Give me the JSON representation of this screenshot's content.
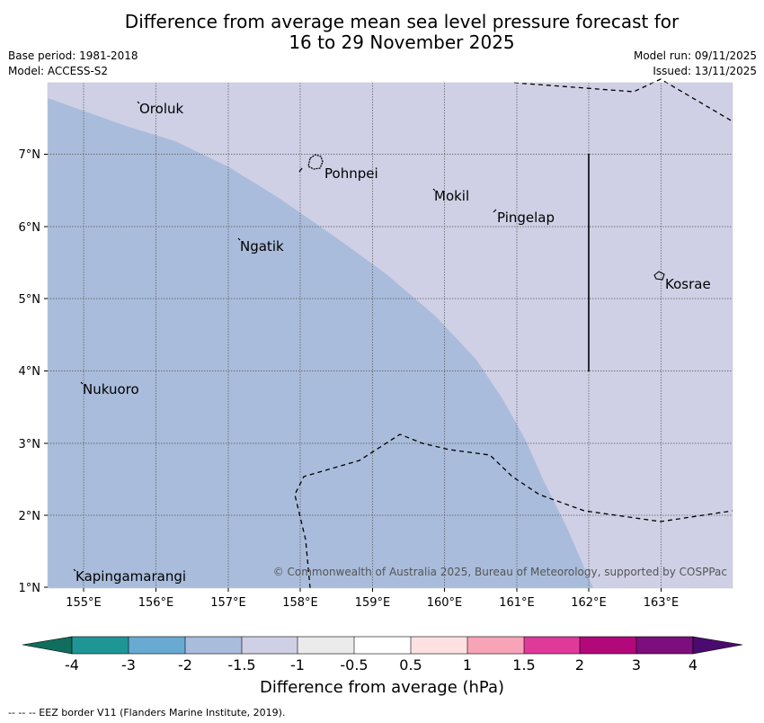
{
  "title_line1": "Difference from average mean sea level pressure forecast for",
  "title_line2": "16 to 29 November 2025",
  "base_period": "Base period: 1981-2018",
  "model": "Model: ACCESS-S2",
  "model_run": "Model run: 09/11/2025",
  "issued": "Issued: 13/11/2025",
  "map": {
    "places": [
      {
        "name": "Oroluk",
        "lon": 155.8,
        "lat": 7.6
      },
      {
        "name": "Pohnpei",
        "lon": 158.2,
        "lat": 6.9
      },
      {
        "name": "Mokil",
        "lon": 159.8,
        "lat": 6.6
      },
      {
        "name": "Pingelap",
        "lon": 160.7,
        "lat": 6.2
      },
      {
        "name": "Ngatik",
        "lon": 157.2,
        "lat": 5.8
      },
      {
        "name": "Kosrae",
        "lon": 163.0,
        "lat": 5.3
      },
      {
        "name": "Nukuoro",
        "lon": 155.0,
        "lat": 3.8
      },
      {
        "name": "Kapingamarangi",
        "lon": 154.8,
        "lat": 1.2
      }
    ],
    "lon_ticks": [
      "155°E",
      "156°E",
      "157°E",
      "158°E",
      "159°E",
      "160°E",
      "161°E",
      "162°E",
      "163°E"
    ],
    "lat_ticks": [
      "7°N",
      "6°N",
      "5°N",
      "4°N",
      "3°N",
      "2°N",
      "1°N"
    ],
    "copyright": "© Commonwealth of Australia 2025, Bureau of Meteorology, supported by COSPPac",
    "region_colors": {
      "range_-2_to_-1.5": "#a9bcdb",
      "range_-1.5_to_-1": "#cfd0e5"
    }
  },
  "colorbar": {
    "ticks": [
      "-4",
      "-3",
      "-2",
      "-1.5",
      "-1",
      "-0.5",
      "0.5",
      "1",
      "1.5",
      "2",
      "3",
      "4"
    ],
    "colors": [
      "#1f9696",
      "#68aad2",
      "#a9bcdb",
      "#cfd0e5",
      "#ebebeb",
      "#ffffff",
      "#ffe1e1",
      "#f7a3b8",
      "#df3a9a",
      "#b2087a",
      "#7d0e7d"
    ],
    "under_color": "#0f6e5e",
    "over_color": "#4b0b6e",
    "title": "Difference from average (hPa)"
  },
  "footnote": "--  --  -- EEZ border V11 (Flanders Marine Institute, 2019)."
}
